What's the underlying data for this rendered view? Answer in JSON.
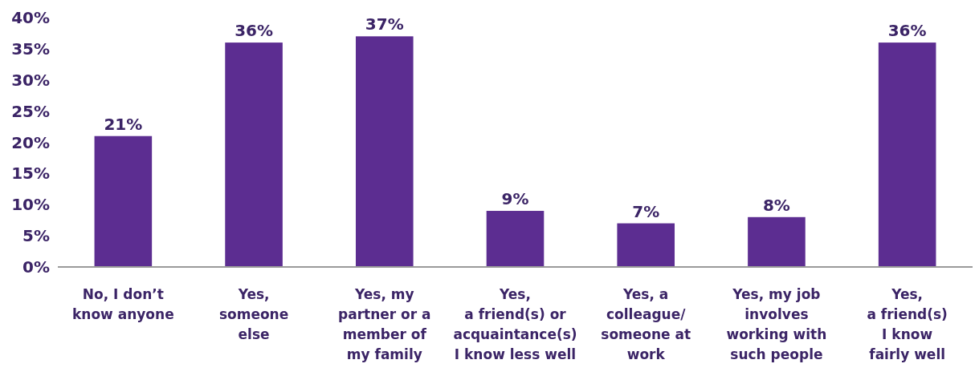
{
  "chart_data": {
    "type": "bar",
    "categories": [
      "No, I don’t\nknow anyone",
      "Yes,\nsomeone\nelse",
      "Yes, my\npartner or a\nmember of\nmy family",
      "Yes,\na friend(s) or\nacquaintance(s)\nI know less well",
      "Yes, a\ncolleague/\nsomeone at\nwork",
      "Yes, my job\ninvolves\nworking with\nsuch people",
      "Yes,\na friend(s)\nI know\nfairly well"
    ],
    "values": [
      21,
      36,
      37,
      9,
      7,
      8,
      36
    ],
    "value_labels": [
      "21%",
      "36%",
      "37%",
      "9%",
      "7%",
      "8%",
      "36%"
    ],
    "color": "#5c2d91",
    "ylim": [
      0,
      40
    ],
    "yticks": [
      {
        "value": 0,
        "label": "0%"
      },
      {
        "value": 5,
        "label": "5%"
      },
      {
        "value": 10,
        "label": "10%"
      },
      {
        "value": 15,
        "label": "15%"
      },
      {
        "value": 20,
        "label": "20%"
      },
      {
        "value": 25,
        "label": "25%"
      },
      {
        "value": 30,
        "label": "30%"
      },
      {
        "value": 35,
        "label": "35%"
      },
      {
        "value": 40,
        "label": "40%"
      }
    ],
    "grid": false
  }
}
